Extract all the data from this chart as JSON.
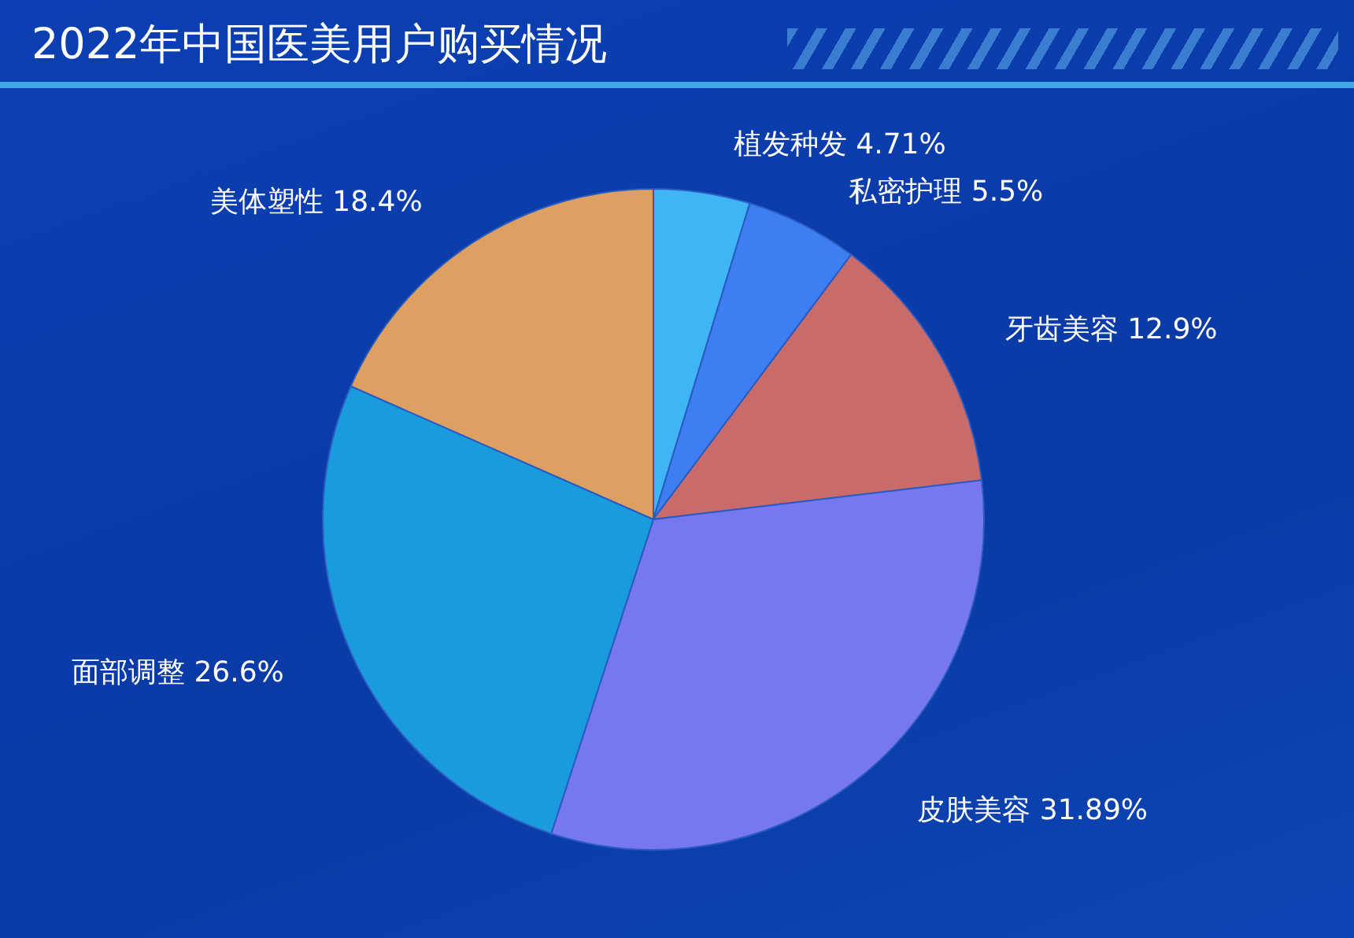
{
  "chart_data": {
    "type": "pie",
    "title": "2022年中国医美用户购买情况",
    "categories": [
      "植发种发",
      "私密护理",
      "牙齿美容",
      "皮肤美容",
      "面部调整",
      "美体塑性"
    ],
    "values": [
      4.71,
      5.5,
      12.9,
      31.89,
      26.6,
      18.4
    ],
    "value_labels": [
      "4.71%",
      "5.5%",
      "12.9%",
      "31.89%",
      "26.6%",
      "18.4%"
    ],
    "colors": [
      "#3fb5f5",
      "#3d7ef2",
      "#c96b6b",
      "#7777f0",
      "#1a9adf",
      "#dea062"
    ],
    "legend": false
  }
}
